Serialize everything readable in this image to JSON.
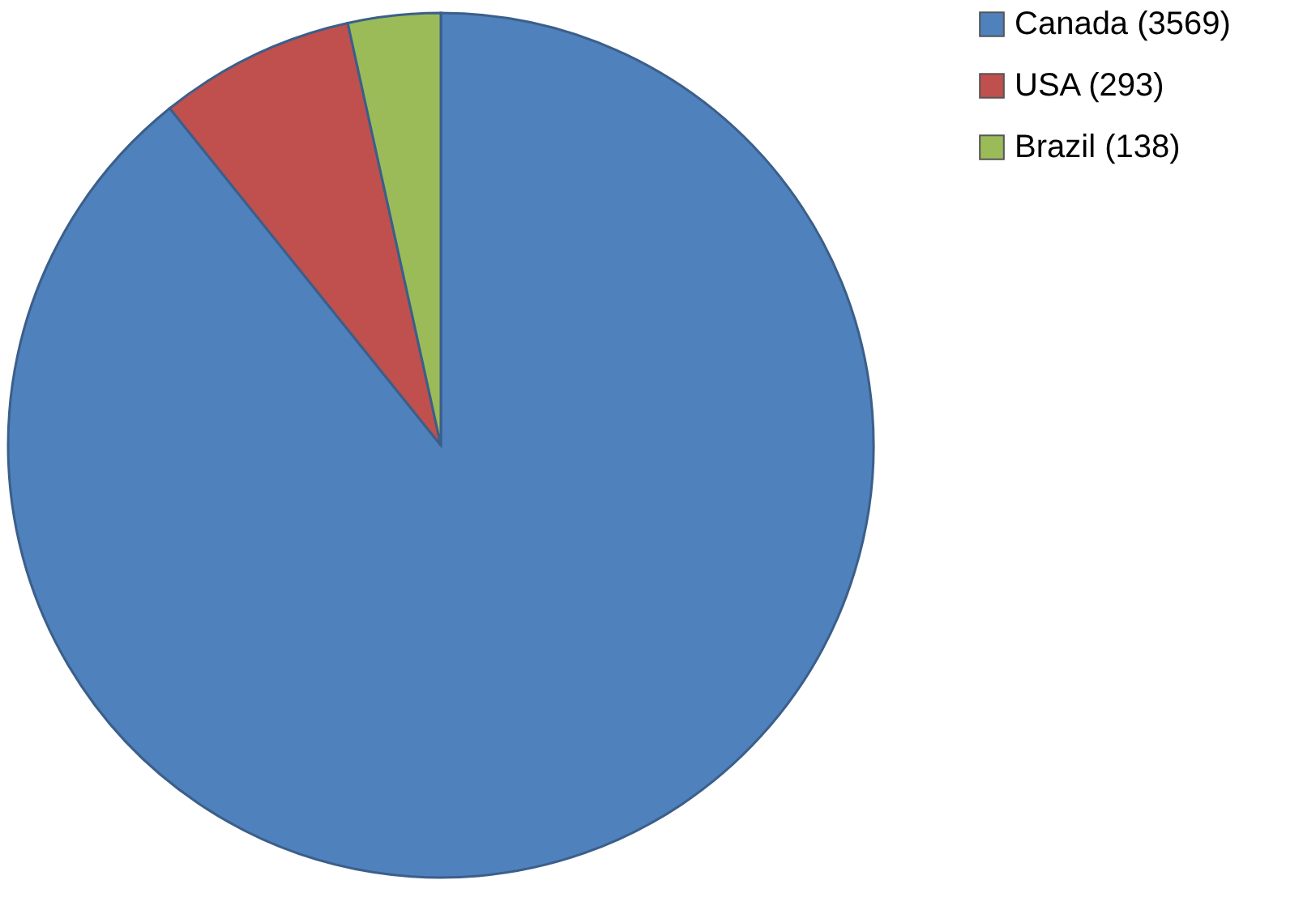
{
  "chart_data": {
    "type": "pie",
    "categories": [
      "Canada (3569)",
      "USA (293)",
      "Brazil (138)"
    ],
    "values": [
      3569,
      293,
      138
    ],
    "colors": [
      "#4f81bd",
      "#c0504d",
      "#9bbb59"
    ],
    "legend": "right"
  }
}
